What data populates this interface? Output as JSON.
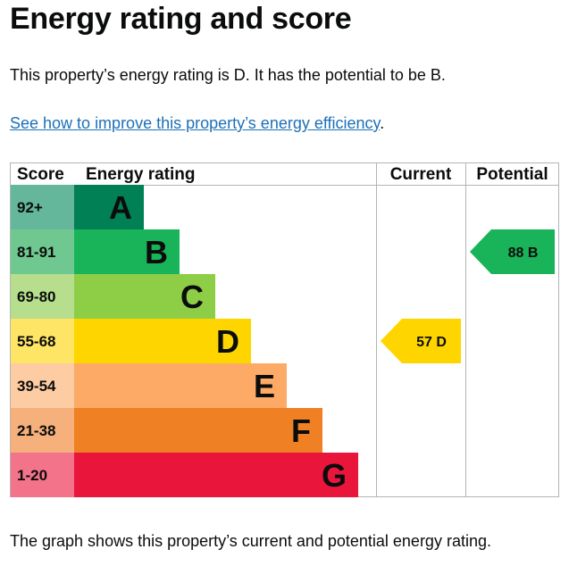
{
  "page": {
    "title": "Energy rating and score",
    "intro": "This property’s energy rating is D. It has the potential to be B.",
    "link_text": "See how to improve this property’s energy efficiency",
    "link_suffix": ".",
    "footer": "The graph shows this property’s current and potential energy rating."
  },
  "chart_data": {
    "type": "table",
    "headers": {
      "score": "Score",
      "rating": "Energy rating",
      "current": "Current",
      "potential": "Potential"
    },
    "bands": [
      {
        "letter": "A",
        "range": "92+",
        "min": 92,
        "max": 100,
        "color": "#008054",
        "score_color": "#64b79a"
      },
      {
        "letter": "B",
        "range": "81-91",
        "min": 81,
        "max": 91,
        "color": "#19b459",
        "score_color": "#6ec88f"
      },
      {
        "letter": "C",
        "range": "69-80",
        "min": 69,
        "max": 80,
        "color": "#8dce46",
        "score_color": "#b6de8c"
      },
      {
        "letter": "D",
        "range": "55-68",
        "min": 55,
        "max": 68,
        "color": "#ffd500",
        "score_color": "#ffe566"
      },
      {
        "letter": "E",
        "range": "39-54",
        "min": 39,
        "max": 54,
        "color": "#fcaa65",
        "score_color": "#fdcca3"
      },
      {
        "letter": "F",
        "range": "21-38",
        "min": 21,
        "max": 38,
        "color": "#ef8023",
        "score_color": "#f5b07b"
      },
      {
        "letter": "G",
        "range": "1-20",
        "min": 1,
        "max": 20,
        "color": "#e9153b",
        "score_color": "#f2738a"
      }
    ],
    "current": {
      "value": 57,
      "band": "D",
      "color": "#ffd500"
    },
    "potential": {
      "value": 88,
      "band": "B",
      "color": "#19b459"
    }
  }
}
